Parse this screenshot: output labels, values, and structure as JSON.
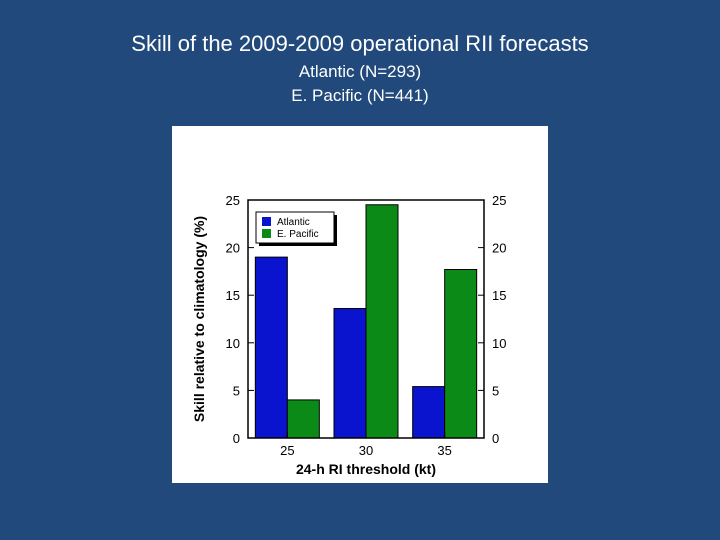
{
  "slide": {
    "title": "Skill of the 2009-2009 operational RII forecasts",
    "subtitle_line1": "Atlantic (N=293)",
    "subtitle_line2": "E. Pacific (N=441)"
  },
  "chart_data": {
    "type": "bar",
    "categories": [
      "25",
      "30",
      "35"
    ],
    "series": [
      {
        "name": "Atlantic",
        "values": [
          19.0,
          13.6,
          5.4
        ],
        "color": "#0a14cf"
      },
      {
        "name": "E. Pacific",
        "values": [
          4.0,
          24.5,
          17.7
        ],
        "color": "#0c8a18"
      }
    ],
    "xlabel": "24-h RI threshold (kt)",
    "ylabel": "Skill relative to climatology (%)",
    "ylim": [
      0,
      25
    ],
    "yticks": [
      "0",
      "5",
      "10",
      "15",
      "20",
      "25"
    ],
    "right_axis_ticks": true,
    "grid": false,
    "legend_position": "top-left"
  }
}
